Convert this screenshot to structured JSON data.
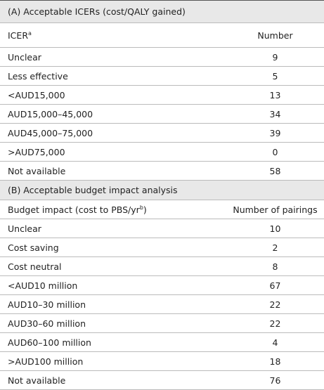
{
  "table": {
    "sections": [
      {
        "title": "(A) Acceptable ICERs (cost/QALY gained)",
        "header": [
          {
            "text": "ICER",
            "sup": "a"
          },
          {
            "text": "Number"
          }
        ],
        "rows": [
          [
            "Unclear",
            9
          ],
          [
            "Less effective",
            5
          ],
          [
            "<AUD15,000",
            13
          ],
          [
            "AUD15,000–45,000",
            34
          ],
          [
            "AUD45,000–75,000",
            39
          ],
          [
            ">AUD75,000",
            0
          ],
          [
            "Not available",
            58
          ]
        ]
      },
      {
        "title": "(B) Acceptable budget impact analysis",
        "header": [
          {
            "text": "Budget impact (cost to PBS/yr",
            "sup": "b",
            "after": ")"
          },
          {
            "text": "Number of pairings"
          }
        ],
        "rows": [
          [
            "Unclear",
            10
          ],
          [
            "Cost saving",
            2
          ],
          [
            "Cost neutral",
            8
          ],
          [
            "<AUD10 million",
            67
          ],
          [
            "AUD10–30 million",
            22
          ],
          [
            "AUD30–60 million",
            22
          ],
          [
            "AUD60–100 million",
            4
          ],
          [
            ">AUD100 million",
            18
          ],
          [
            "Not available",
            76
          ]
        ]
      }
    ]
  }
}
